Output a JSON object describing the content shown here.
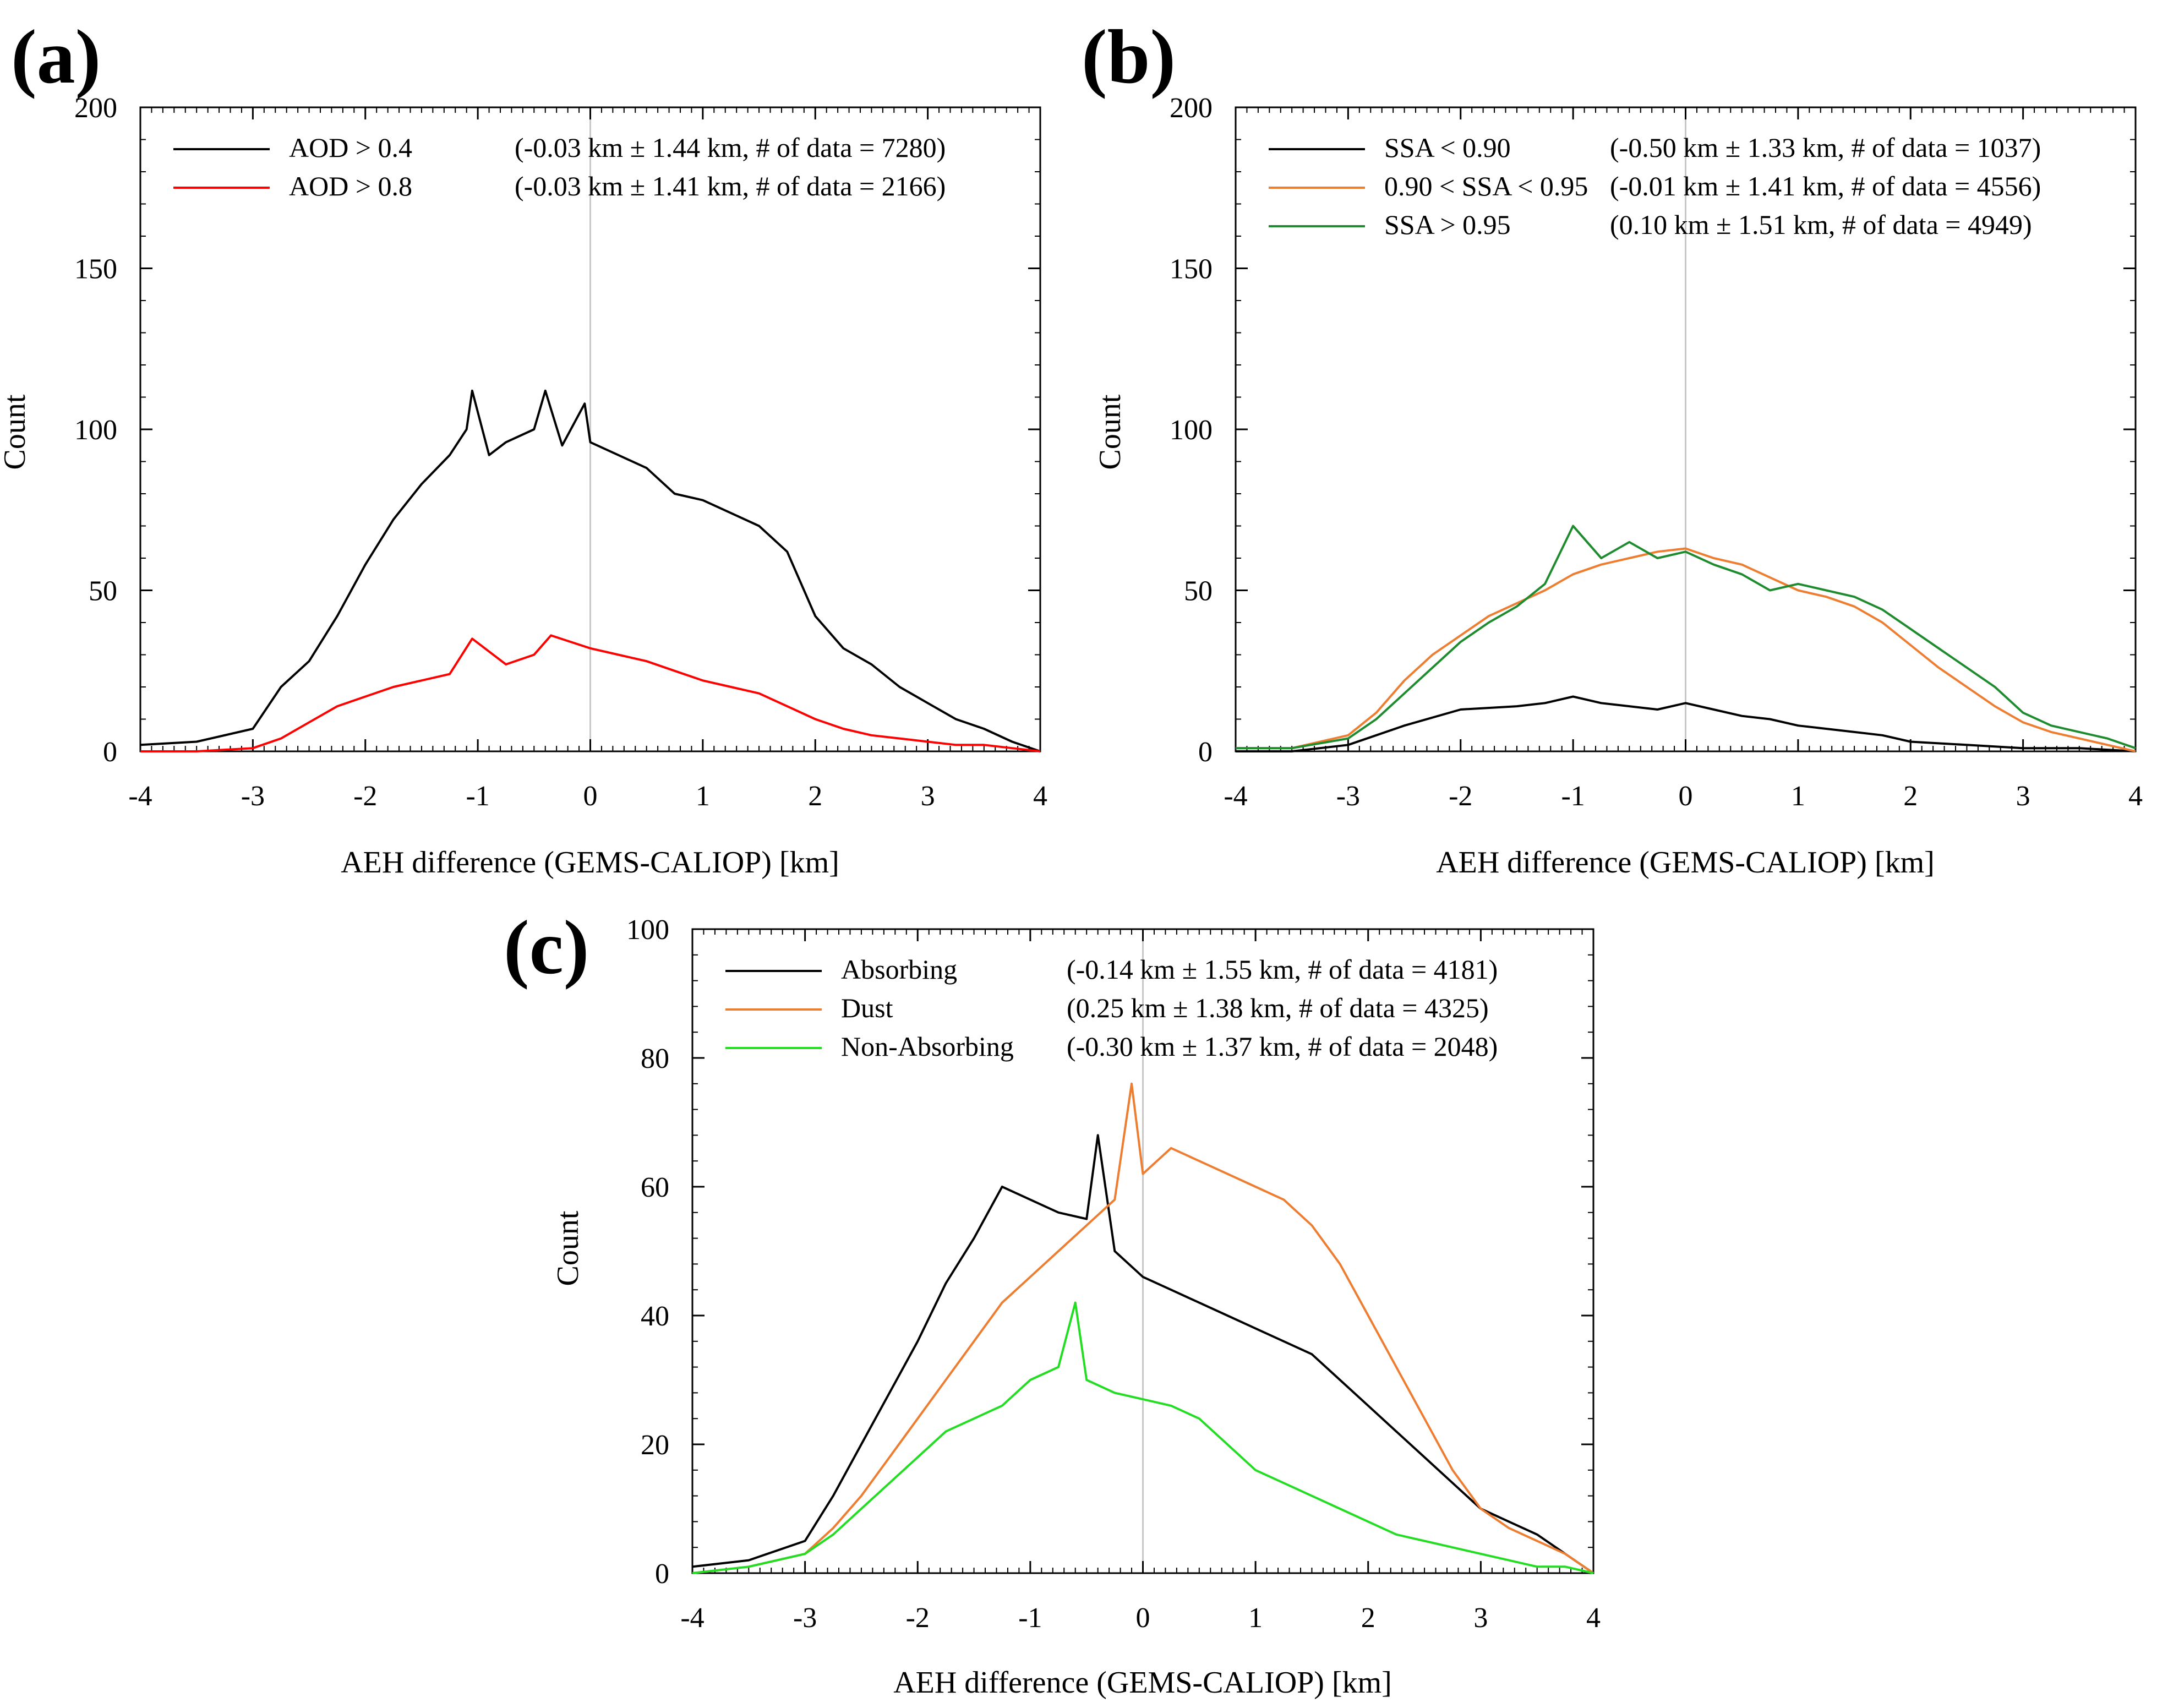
{
  "chart_data": [
    {
      "panel": "(a)",
      "type": "line",
      "xlabel": "AEH difference (GEMS-CALIOP) [km]",
      "ylabel": "Count",
      "xlim": [
        -4,
        4
      ],
      "ylim": [
        0,
        200
      ],
      "x_ticks": [
        -4,
        -3,
        -2,
        -1,
        0,
        1,
        2,
        3,
        4
      ],
      "y_ticks": [
        0,
        50,
        100,
        150,
        200
      ],
      "x_tick_labels": [
        "-4",
        "-3",
        "-2",
        "-1",
        "0",
        "1",
        "2",
        "3",
        "4"
      ],
      "y_tick_labels": [
        "0",
        "50",
        "100",
        "150",
        "200"
      ],
      "zero_line": true,
      "legend_position": "top-left",
      "series": [
        {
          "name": "AOD > 0.4",
          "stats": "(-0.03 km ±  1.44 km, # of data = 7280)",
          "color": "#000000",
          "x": [
            -4.0,
            -3.5,
            -3.0,
            -2.75,
            -2.5,
            -2.25,
            -2.0,
            -1.75,
            -1.5,
            -1.25,
            -1.1,
            -1.05,
            -0.9,
            -0.75,
            -0.5,
            -0.4,
            -0.25,
            -0.05,
            0.0,
            0.25,
            0.5,
            0.75,
            1.0,
            1.25,
            1.5,
            1.75,
            2.0,
            2.25,
            2.5,
            2.75,
            3.0,
            3.25,
            3.5,
            3.75,
            4.0
          ],
          "y": [
            2,
            3,
            7,
            20,
            28,
            42,
            58,
            72,
            83,
            92,
            100,
            112,
            92,
            96,
            100,
            112,
            95,
            108,
            96,
            92,
            88,
            80,
            78,
            74,
            70,
            62,
            42,
            32,
            27,
            20,
            15,
            10,
            7,
            3,
            0
          ]
        },
        {
          "name": "AOD > 0.8",
          "stats": "(-0.03 km ±  1.41 km, # of data = 2166)",
          "color": "#ff0000",
          "x": [
            -4.0,
            -3.5,
            -3.0,
            -2.75,
            -2.5,
            -2.25,
            -2.0,
            -1.75,
            -1.5,
            -1.25,
            -1.05,
            -0.75,
            -0.5,
            -0.35,
            0.0,
            0.25,
            0.5,
            0.75,
            1.0,
            1.25,
            1.5,
            1.75,
            2.0,
            2.25,
            2.5,
            2.75,
            3.0,
            3.25,
            3.5,
            3.75,
            4.0
          ],
          "y": [
            0,
            0,
            1,
            4,
            9,
            14,
            17,
            20,
            22,
            24,
            35,
            27,
            30,
            36,
            32,
            30,
            28,
            25,
            22,
            20,
            18,
            14,
            10,
            7,
            5,
            4,
            3,
            2,
            2,
            1,
            0
          ]
        }
      ]
    },
    {
      "panel": "(b)",
      "type": "line",
      "xlabel": "AEH difference (GEMS-CALIOP) [km]",
      "ylabel": "Count",
      "xlim": [
        -4,
        4
      ],
      "ylim": [
        0,
        200
      ],
      "x_ticks": [
        -4,
        -3,
        -2,
        -1,
        0,
        1,
        2,
        3,
        4
      ],
      "y_ticks": [
        0,
        50,
        100,
        150,
        200
      ],
      "x_tick_labels": [
        "-4",
        "-3",
        "-2",
        "-1",
        "0",
        "1",
        "2",
        "3",
        "4"
      ],
      "y_tick_labels": [
        "0",
        "50",
        "100",
        "150",
        "200"
      ],
      "zero_line": true,
      "legend_position": "top-left",
      "series": [
        {
          "name": "SSA < 0.90",
          "stats": "(-0.50 km ±  1.33 km, # of data = 1037)",
          "color": "#000000",
          "x": [
            -4.0,
            -3.5,
            -3.0,
            -2.5,
            -2.0,
            -1.5,
            -1.25,
            -1.0,
            -0.75,
            -0.5,
            -0.25,
            0.0,
            0.25,
            0.5,
            0.75,
            1.0,
            1.25,
            1.5,
            1.75,
            2.0,
            2.5,
            3.0,
            3.5,
            4.0
          ],
          "y": [
            0,
            0,
            2,
            8,
            13,
            14,
            15,
            17,
            15,
            14,
            13,
            15,
            13,
            11,
            10,
            8,
            7,
            6,
            5,
            3,
            2,
            1,
            1,
            0
          ]
        },
        {
          "name": "0.90 < SSA < 0.95",
          "stats": "(-0.01 km ±  1.41 km, # of data = 4556)",
          "color": "#ed7d31",
          "x": [
            -4.0,
            -3.5,
            -3.0,
            -2.75,
            -2.5,
            -2.25,
            -2.0,
            -1.75,
            -1.5,
            -1.25,
            -1.0,
            -0.75,
            -0.5,
            -0.25,
            0.0,
            0.25,
            0.5,
            0.75,
            1.0,
            1.25,
            1.5,
            1.75,
            2.0,
            2.25,
            2.5,
            2.75,
            3.0,
            3.25,
            3.5,
            3.75,
            4.0
          ],
          "y": [
            1,
            1,
            5,
            12,
            22,
            30,
            36,
            42,
            46,
            50,
            55,
            58,
            60,
            62,
            63,
            60,
            58,
            54,
            50,
            48,
            45,
            40,
            33,
            26,
            20,
            14,
            9,
            6,
            4,
            2,
            0
          ]
        },
        {
          "name": "SSA > 0.95",
          "stats": "(0.10 km ±  1.51 km, # of data = 4949)",
          "color": "#1e8c2e",
          "x": [
            -4.0,
            -3.5,
            -3.0,
            -2.75,
            -2.5,
            -2.25,
            -2.0,
            -1.75,
            -1.5,
            -1.25,
            -1.0,
            -0.75,
            -0.5,
            -0.25,
            0.0,
            0.25,
            0.5,
            0.75,
            1.0,
            1.25,
            1.5,
            1.75,
            2.0,
            2.25,
            2.5,
            2.75,
            3.0,
            3.25,
            3.5,
            3.75,
            4.0
          ],
          "y": [
            1,
            1,
            4,
            10,
            18,
            26,
            34,
            40,
            45,
            52,
            70,
            60,
            65,
            60,
            62,
            58,
            55,
            50,
            52,
            50,
            48,
            44,
            38,
            32,
            26,
            20,
            12,
            8,
            6,
            4,
            1
          ]
        }
      ]
    },
    {
      "panel": "(c)",
      "type": "line",
      "xlabel": "AEH difference (GEMS-CALIOP) [km]",
      "ylabel": "Count",
      "xlim": [
        -4,
        4
      ],
      "ylim": [
        0,
        100
      ],
      "x_ticks": [
        -4,
        -3,
        -2,
        -1,
        0,
        1,
        2,
        3,
        4
      ],
      "y_ticks": [
        0,
        20,
        40,
        60,
        80,
        100
      ],
      "x_tick_labels": [
        "-4",
        "-3",
        "-2",
        "-1",
        "0",
        "1",
        "2",
        "3",
        "4"
      ],
      "y_tick_labels": [
        "0",
        "20",
        "40",
        "60",
        "80",
        "100"
      ],
      "zero_line": true,
      "legend_position": "top-left",
      "series": [
        {
          "name": "Absorbing",
          "stats": "(-0.14 km ±  1.55 km, # of data = 4181)",
          "color": "#000000",
          "x": [
            -4.0,
            -3.5,
            -3.0,
            -2.75,
            -2.5,
            -2.25,
            -2.0,
            -1.75,
            -1.5,
            -1.25,
            -1.0,
            -0.75,
            -0.5,
            -0.4,
            -0.25,
            0.0,
            0.25,
            0.5,
            0.75,
            1.0,
            1.25,
            1.5,
            1.75,
            2.0,
            2.25,
            2.5,
            2.75,
            3.0,
            3.25,
            3.5,
            3.75,
            4.0
          ],
          "y": [
            1,
            2,
            5,
            12,
            20,
            28,
            36,
            45,
            52,
            60,
            58,
            56,
            55,
            68,
            50,
            46,
            44,
            42,
            40,
            38,
            36,
            34,
            30,
            26,
            22,
            18,
            14,
            10,
            8,
            6,
            3,
            0
          ]
        },
        {
          "name": "Dust",
          "stats": "(0.25 km ±  1.38 km, # of data = 4325)",
          "color": "#ed7d31",
          "x": [
            -4.0,
            -3.5,
            -3.0,
            -2.75,
            -2.5,
            -2.25,
            -2.0,
            -1.75,
            -1.5,
            -1.25,
            -1.0,
            -0.75,
            -0.5,
            -0.25,
            -0.1,
            0.0,
            0.25,
            0.5,
            0.75,
            1.0,
            1.25,
            1.5,
            1.75,
            2.0,
            2.25,
            2.5,
            2.75,
            3.0,
            3.25,
            3.5,
            3.75,
            4.0
          ],
          "y": [
            0,
            1,
            3,
            7,
            12,
            18,
            24,
            30,
            36,
            42,
            46,
            50,
            54,
            58,
            76,
            62,
            66,
            64,
            62,
            60,
            58,
            54,
            48,
            40,
            32,
            24,
            16,
            10,
            7,
            5,
            3,
            0
          ]
        },
        {
          "name": "Non-Absorbing",
          "stats": "(-0.30 km ±  1.37 km, # of data = 2048)",
          "color": "#22dd22",
          "x": [
            -4.0,
            -3.5,
            -3.0,
            -2.75,
            -2.5,
            -2.25,
            -2.0,
            -1.75,
            -1.5,
            -1.25,
            -1.0,
            -0.75,
            -0.6,
            -0.5,
            -0.25,
            0.0,
            0.25,
            0.5,
            0.75,
            1.0,
            1.25,
            1.5,
            1.75,
            2.0,
            2.25,
            2.5,
            2.75,
            3.0,
            3.25,
            3.5,
            3.75,
            4.0
          ],
          "y": [
            0,
            1,
            3,
            6,
            10,
            14,
            18,
            22,
            24,
            26,
            30,
            32,
            42,
            30,
            28,
            27,
            26,
            24,
            20,
            16,
            14,
            12,
            10,
            8,
            6,
            5,
            4,
            3,
            2,
            1,
            1,
            0
          ]
        }
      ]
    }
  ]
}
